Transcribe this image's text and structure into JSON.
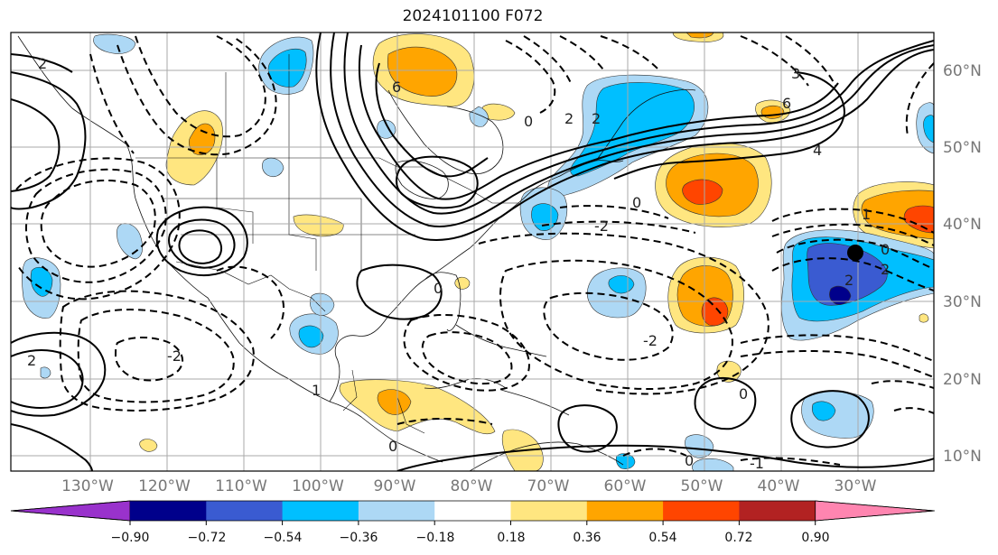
{
  "title": "2024101100 F072",
  "lon_labels": [
    "130°W",
    "120°W",
    "110°W",
    "100°W",
    "90°W",
    "80°W",
    "70°W",
    "60°W",
    "50°W",
    "40°W",
    "30°W"
  ],
  "lat_labels": [
    "60°N",
    "50°N",
    "40°N",
    "30°N",
    "20°N",
    "10°N"
  ],
  "colorbar": {
    "ticks": [
      "−0.90",
      "−0.72",
      "−0.54",
      "−0.36",
      "−0.18",
      "0.18",
      "0.36",
      "0.54",
      "0.72",
      "0.90"
    ],
    "colors": [
      "#9932cc",
      "#00008b",
      "#3a5bd1",
      "#00bfff",
      "#add8f5",
      "#ffffff",
      "#ffe680",
      "#ffa500",
      "#ff4500",
      "#b22222",
      "#ff85b0"
    ]
  },
  "contour_labels": [
    "0",
    "2",
    "2",
    "4",
    "6",
    "6",
    "3",
    "0",
    "-1",
    "0",
    "2",
    "2",
    "-2",
    "0",
    "1",
    "2",
    "-2",
    "-2",
    "0",
    "0",
    "1",
    "0",
    "2"
  ]
}
